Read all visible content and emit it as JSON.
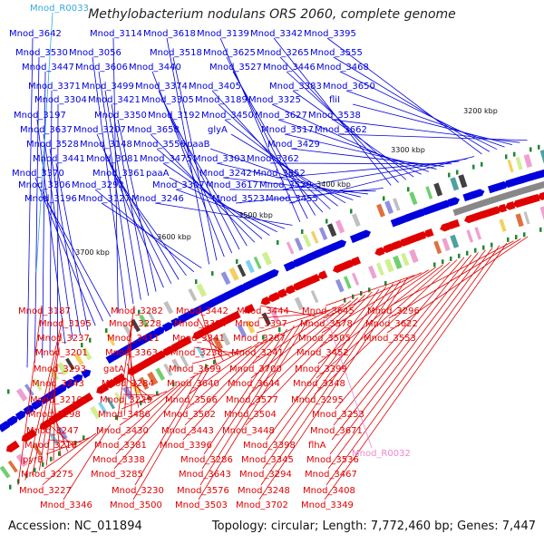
{
  "title": "Methylobacterium nodulans ORS 2060, complete genome",
  "accession": "Accession: NC_011894",
  "summary": "Topology: circular; Length: 7,772,460 bp; Genes: 7,447",
  "colors": {
    "forward": "#0000dd",
    "reverse": "#e00000",
    "rna": "#33aadd",
    "pseudo": "#ee88cc",
    "backbone": "#888888"
  },
  "position_marks_kbp": [
    "3200 kbp",
    "3300 kbp",
    "3400 kbp",
    "3500 kbp",
    "3600 kbp",
    "3700 kbp"
  ],
  "rna_labels": [
    {
      "text": "Mnod_R0033",
      "strand": "top"
    },
    {
      "text": "Mnod_R0032",
      "strand": "bottom"
    }
  ],
  "top_labels": [
    "Mnod_3642",
    "Mnod_3530",
    "Mnod_3447",
    "Mnod_3371",
    "Mnod_3304",
    "Mnod_3197",
    "Mnod_3637",
    "Mnod_3528",
    "Mnod_3441",
    "Mnod_3370",
    "Mnod_3306",
    "Mnod_3196",
    "Mnod_3114",
    "Mnod_3056",
    "Mnod_3606",
    "Mnod_3499",
    "Mnod_3421",
    "Mnod_3350",
    "Mnod_3207",
    "Mnod_3148",
    "Mnod_3081",
    "Mnod_3361",
    "Mnod_3292",
    "Mnod_3127",
    "Mnod_3618",
    "Mnod_3518",
    "Mnod_3440",
    "Mnod_3374",
    "Mnod_3305",
    "Mnod_3192",
    "Mnod_3658",
    "Mnod_3556",
    "Mnod_3475",
    "paaA",
    "Mnod_3307",
    "Mnod_3246",
    "Mnod_3139",
    "Mnod_3625",
    "Mnod_3527",
    "Mnod_3405",
    "Mnod_3189",
    "Mnod_3450",
    "glyA",
    "paaB",
    "Mnod_3303",
    "Mnod_3242",
    "Mnod_3617",
    "Mnod_3523",
    "Mnod_3342",
    "Mnod_3265",
    "Mnod_3446",
    "Mnod_3383",
    "Mnod_3325",
    "Mnod_3627",
    "Mnod_3517",
    "Mnod_3429",
    "Mnod_3362",
    "Mnod_3652",
    "Mnod_3529",
    "Mnod_3455",
    "Mnod_3395",
    "Mnod_3555",
    "Mnod_3468",
    "Mnod_3650",
    "fliI",
    "Mnod_3538",
    "Mnod_3662"
  ],
  "bottom_labels": [
    "Mnod_3187",
    "Mnod_3195",
    "Mnod_3237",
    "Mnod_3201",
    "Mnod_3293",
    "Mnod_3243",
    "Mnod_3210",
    "Mnod_3298",
    "Mnod_3247",
    "Mnod_3218",
    "pyrB",
    "Mnod_3275",
    "Mnod_3227",
    "Mnod_3346",
    "Mnod_3282",
    "Mnod_3228",
    "Mnod_3411",
    "Mnod_3363",
    "gatA",
    "Mnod_3284",
    "Mnod_3229",
    "Mnod_3486",
    "Mnod_3430",
    "Mnod_3381",
    "Mnod_3338",
    "Mnod_3285",
    "Mnod_3230",
    "Mnod_3500",
    "Mnod_3442",
    "Mnod_3394",
    "Mnod_3341",
    "Mnod_3238",
    "Mnod_3699",
    "Mnod_3640",
    "Mnod_3566",
    "Mnod_3502",
    "Mnod_3443",
    "Mnod_3396",
    "Mnod_3286",
    "Mnod_3643",
    "Mnod_3576",
    "Mnod_3503",
    "Mnod_3444",
    "Mnod_3397",
    "Mnod_3287",
    "Mnod_3241",
    "Mnod_3700",
    "Mnod_3644",
    "Mnod_3577",
    "Mnod_3504",
    "Mnod_3448",
    "Mnod_3398",
    "Mnod_3345",
    "Mnod_3294",
    "Mnod_3248",
    "Mnod_3702",
    "Mnod_3645",
    "Mnod_3578",
    "Mnod_3505",
    "Mnod_3452",
    "Mnod_3399",
    "Mnod_3348",
    "Mnod_3295",
    "Mnod_3253",
    "Mnod_3671",
    "flhA",
    "Mnod_3536",
    "Mnod_3467",
    "Mnod_3408",
    "Mnod_3349",
    "Mnod_3296",
    "Mnod_3622",
    "Mnod_3553"
  ]
}
